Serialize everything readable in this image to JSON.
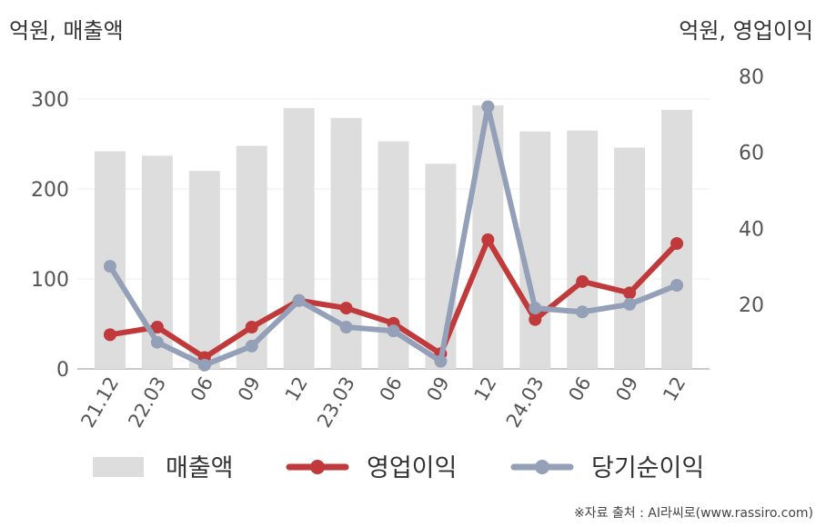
{
  "units": {
    "left": "억원, 매출액",
    "right": "억원, 영업이익"
  },
  "source": "※자료 출처 : AI라씨로(www.rassiro.com)",
  "chart_data": {
    "type": "bar+line",
    "categories": [
      "21.12",
      "22.03",
      "06",
      "09",
      "12",
      "23.03",
      "06",
      "09",
      "12",
      "24.03",
      "06",
      "09",
      "12"
    ],
    "left_axis": {
      "ylim": [
        0,
        300
      ],
      "ticks": [
        "0",
        "100",
        "200",
        "300"
      ]
    },
    "right_axis": {
      "ylim": [
        3,
        80
      ],
      "ticks": [
        "20",
        "40",
        "60",
        "80"
      ]
    },
    "series": [
      {
        "name": "매출액",
        "type": "bar",
        "axis": "left",
        "color": "#dddddd",
        "values": [
          242,
          237,
          220,
          248,
          290,
          279,
          253,
          228,
          293,
          264,
          265,
          246,
          288
        ]
      },
      {
        "name": "영업이익",
        "type": "line",
        "axis": "right",
        "color": "#c0393b",
        "values": [
          12,
          14,
          6,
          14,
          21,
          19,
          15,
          7,
          37,
          16,
          26,
          23,
          36
        ]
      },
      {
        "name": "당기순이익",
        "type": "line",
        "axis": "right",
        "color": "#93a0b8",
        "values": [
          30,
          10,
          4,
          9,
          21,
          14,
          13,
          5,
          72,
          19,
          18,
          20,
          25
        ]
      }
    ],
    "grid": true,
    "legend": "bottom"
  }
}
